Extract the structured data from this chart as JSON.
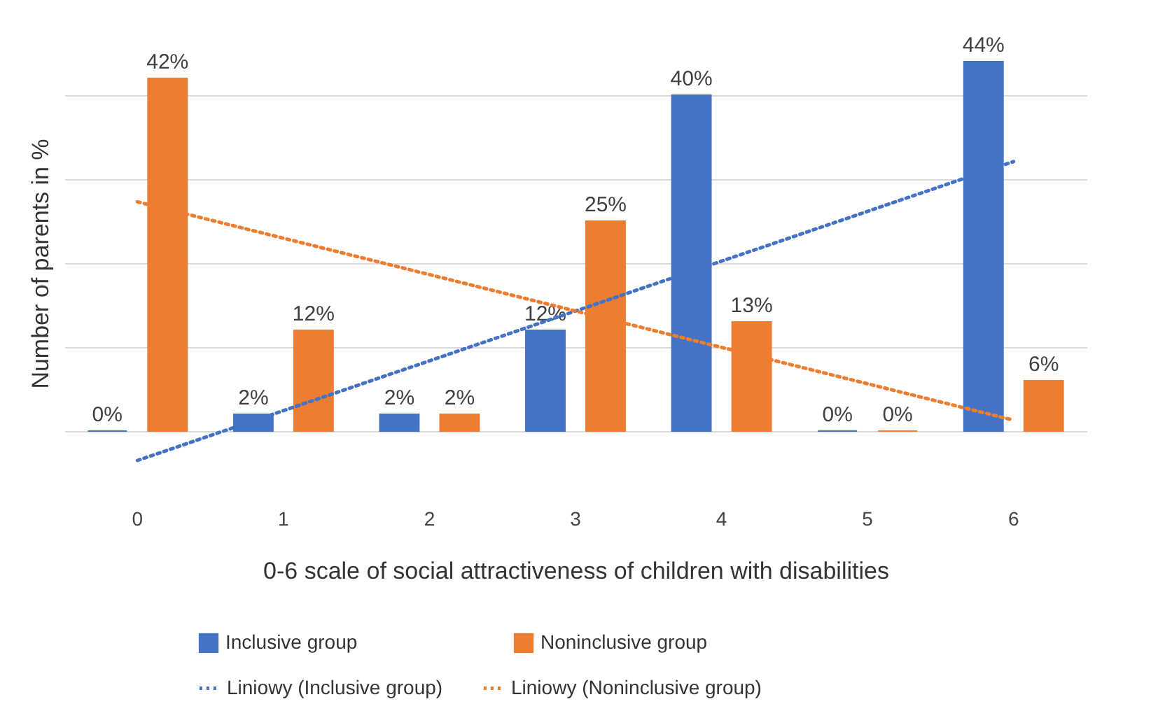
{
  "chart_data": {
    "type": "bar",
    "xlabel": "0-6 scale of social attractiveness of children with disabilities",
    "ylabel": "Number of parents in %",
    "categories": [
      "0",
      "1",
      "2",
      "3",
      "4",
      "5",
      "6"
    ],
    "series": [
      {
        "name": "Inclusive group",
        "color": "#4472c4",
        "values": [
          0,
          2,
          2,
          12,
          40,
          0,
          44
        ],
        "value_labels": [
          "0%",
          "2%",
          "2%",
          "12%",
          "40%",
          "0%",
          "44%"
        ]
      },
      {
        "name": "Noninclusive group",
        "color": "#ed7d31",
        "values": [
          42,
          12,
          2,
          25,
          13,
          0,
          6
        ],
        "value_labels": [
          "42%",
          "12%",
          "2%",
          "25%",
          "13%",
          "0%",
          "6%"
        ]
      },
      {
        "name": "Liniowy (Inclusive group)",
        "type": "line",
        "line_style": "dotted",
        "color": "#4472c4",
        "x": [
          "0",
          "6"
        ],
        "values": [
          -3.5,
          32.1
        ]
      },
      {
        "name": "Liniowy (Noninclusive group)",
        "type": "line",
        "line_style": "dotted",
        "color": "#ed7d31",
        "x": [
          "0",
          "6"
        ],
        "values": [
          27.3,
          1.3
        ]
      }
    ],
    "yticks": [
      {
        "value": 0,
        "label": null
      },
      {
        "value": 10,
        "label": null
      },
      {
        "value": 20,
        "label": null
      },
      {
        "value": 30,
        "label": null
      },
      {
        "value": 40,
        "label": null
      }
    ],
    "tick_labels": "x",
    "grid": "y",
    "legend": "bottom"
  }
}
